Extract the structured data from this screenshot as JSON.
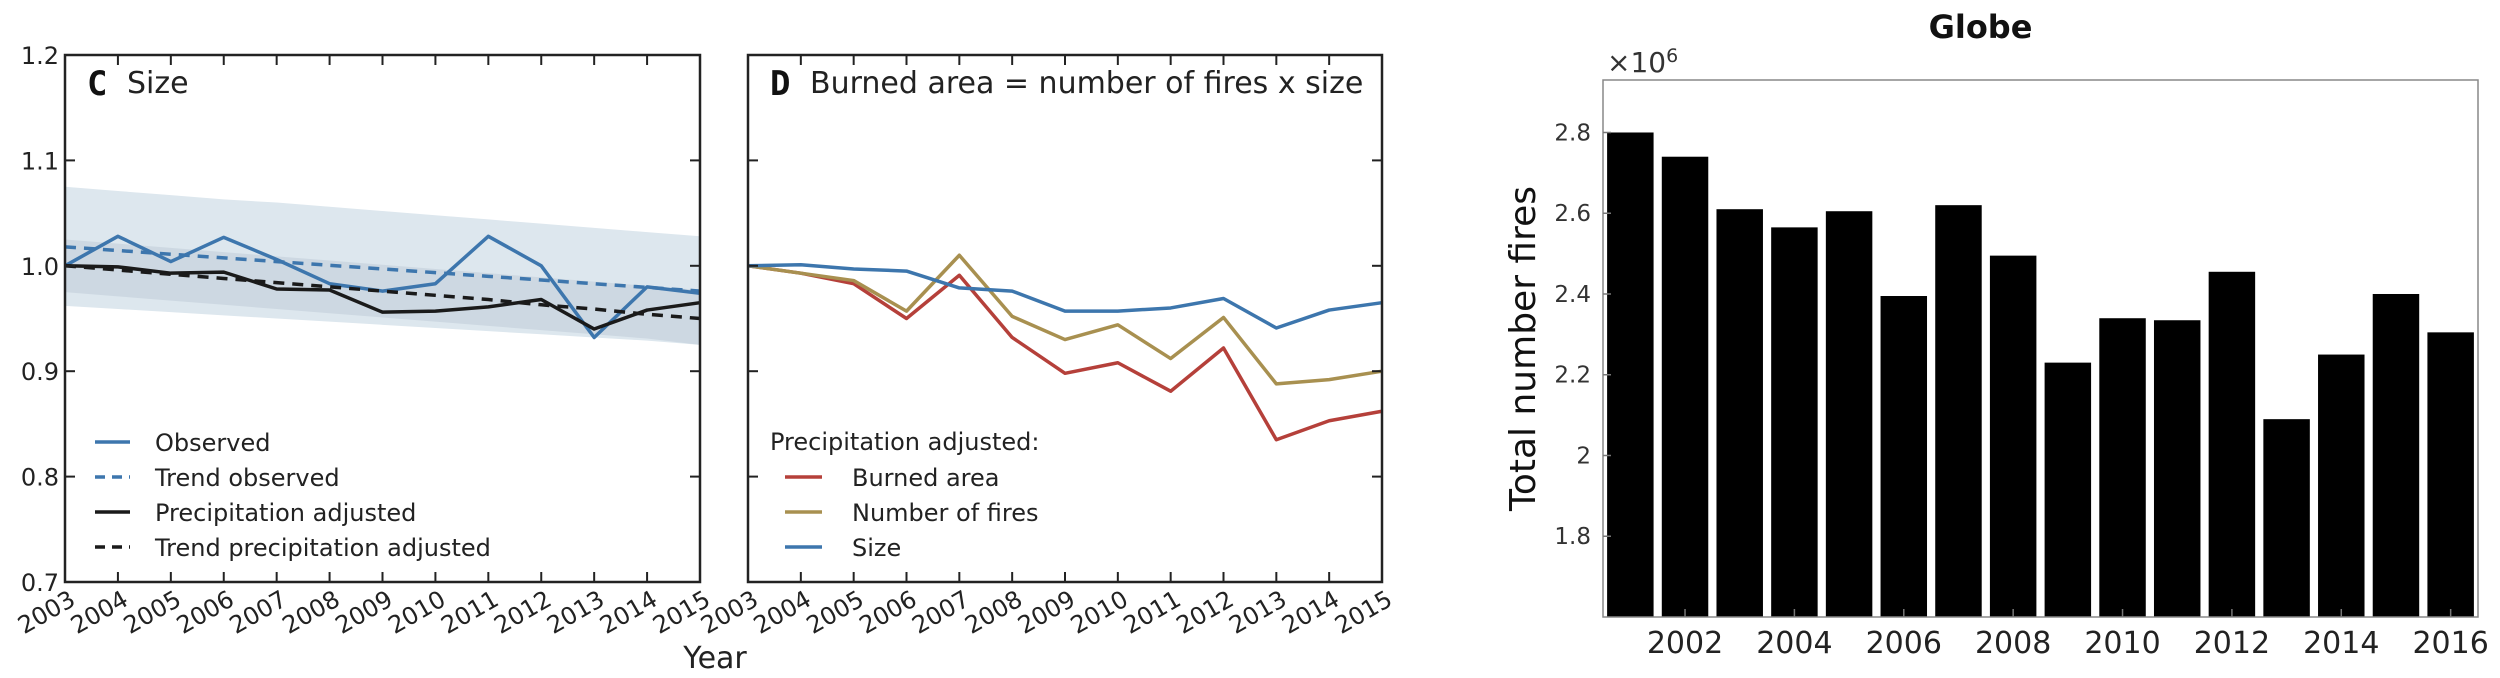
{
  "chart_data": [
    {
      "panel": "C",
      "type": "line",
      "title": "Size",
      "xlabel": "Year",
      "x": [
        2003,
        2004,
        2005,
        2006,
        2007,
        2008,
        2009,
        2010,
        2011,
        2012,
        2013,
        2014,
        2015
      ],
      "ylim": [
        0.7,
        1.2
      ],
      "yticks": [
        "0.7",
        "0.8",
        "0.9",
        "1.0",
        "1.1",
        "1.2"
      ],
      "series": [
        {
          "name": "Observed",
          "color": "#3d76ad",
          "dash": false,
          "values": [
            1.0,
            1.028,
            1.004,
            1.027,
            1.006,
            0.983,
            0.976,
            0.983,
            1.028,
            1.0,
            0.932,
            0.98,
            0.974
          ]
        },
        {
          "name": "Trend observed",
          "color": "#3d76ad",
          "dash": true,
          "values": [
            1.018,
            1.0145,
            1.011,
            1.0075,
            1.004,
            1.0005,
            0.997,
            0.9935,
            0.99,
            0.9865,
            0.983,
            0.9795,
            0.976
          ]
        },
        {
          "name": "Precipitation adjusted",
          "color": "#1a1a1a",
          "dash": false,
          "values": [
            1.0,
            0.999,
            0.993,
            0.994,
            0.978,
            0.977,
            0.956,
            0.957,
            0.961,
            0.968,
            0.94,
            0.958,
            0.965
          ]
        },
        {
          "name": "Trend precipitation adjusted",
          "color": "#1a1a1a",
          "dash": true,
          "values": [
            1.0,
            0.996,
            0.992,
            0.988,
            0.984,
            0.98,
            0.976,
            0.972,
            0.968,
            0.963,
            0.959,
            0.954,
            0.95
          ]
        }
      ],
      "bands": [
        {
          "color": "#dde7ee",
          "upper": [
            1.075,
            1.071,
            1.067,
            1.063,
            1.06,
            1.056,
            1.052,
            1.048,
            1.044,
            1.04,
            1.036,
            1.032,
            1.028
          ],
          "lower": [
            0.962,
            0.959,
            0.956,
            0.953,
            0.95,
            0.947,
            0.944,
            0.941,
            0.938,
            0.935,
            0.932,
            0.929,
            0.925
          ]
        },
        {
          "color": "#c7d3dd",
          "upper": [
            1.025,
            1.021,
            1.017,
            1.013,
            1.009,
            1.005,
            1.001,
            0.997,
            0.993,
            0.989,
            0.985,
            0.981,
            0.977
          ],
          "lower": [
            0.975,
            0.971,
            0.967,
            0.963,
            0.959,
            0.955,
            0.951,
            0.947,
            0.943,
            0.939,
            0.935,
            0.931,
            0.925
          ]
        }
      ],
      "legend": {
        "placement": "lower-left"
      }
    },
    {
      "panel": "D",
      "type": "line",
      "title": "Burned area = number of fires x size",
      "x": [
        2003,
        2004,
        2005,
        2006,
        2007,
        2008,
        2009,
        2010,
        2011,
        2012,
        2013,
        2014,
        2015
      ],
      "ylim": [
        0.7,
        1.2
      ],
      "legend": {
        "title": "Precipitation adjusted:",
        "placement": "lower-left"
      },
      "series": [
        {
          "name": "Burned area",
          "color": "#b5403a",
          "values": [
            1.0,
            0.993,
            0.983,
            0.95,
            0.991,
            0.932,
            0.898,
            0.908,
            0.881,
            0.922,
            0.835,
            0.853,
            0.862
          ]
        },
        {
          "name": "Number of fires",
          "color": "#a89050",
          "values": [
            1.0,
            0.993,
            0.986,
            0.957,
            1.01,
            0.952,
            0.93,
            0.944,
            0.912,
            0.951,
            0.888,
            0.892,
            0.9
          ]
        },
        {
          "name": "Size",
          "color": "#3d76ad",
          "values": [
            1.0,
            1.001,
            0.997,
            0.995,
            0.979,
            0.976,
            0.957,
            0.957,
            0.96,
            0.969,
            0.941,
            0.958,
            0.965
          ]
        }
      ]
    },
    {
      "type": "bar",
      "title": "Globe",
      "ylabel": "Total number fires",
      "yscale_label": "×10^6",
      "scale_base": "×10",
      "scale_exp": "6",
      "x": [
        2001,
        2002,
        2003,
        2004,
        2005,
        2006,
        2007,
        2008,
        2009,
        2010,
        2011,
        2012,
        2013,
        2014,
        2015,
        2016
      ],
      "xticks": [
        "2002",
        "2004",
        "2006",
        "2008",
        "2010",
        "2012",
        "2014",
        "2016"
      ],
      "yticks": [
        "1.8",
        "2",
        "2.2",
        "2.4",
        "2.6",
        "2.8"
      ],
      "ylim": [
        1.6,
        2.93
      ],
      "values": [
        2.8,
        2.74,
        2.61,
        2.565,
        2.605,
        2.395,
        2.62,
        2.495,
        2.23,
        2.34,
        2.335,
        2.455,
        2.09,
        2.25,
        2.4,
        2.305
      ],
      "bar_color": "#000000"
    }
  ]
}
